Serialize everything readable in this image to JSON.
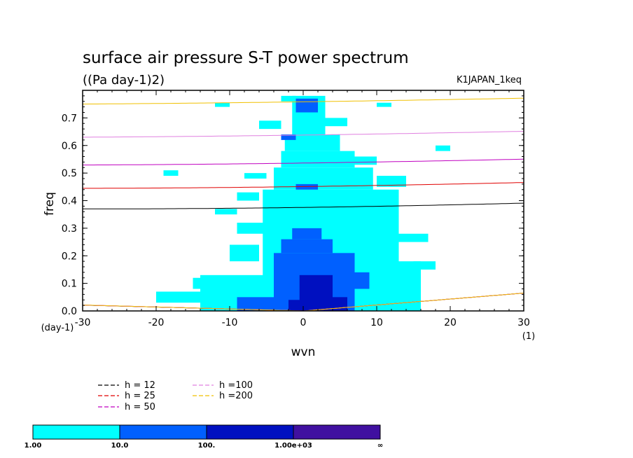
{
  "chart_data": {
    "type": "heatmap",
    "title": "surface air pressure S-T power spectrum",
    "subtitle": "((Pa day-1)2)",
    "run_label": "K1JAPAN_1keq",
    "xlabel": "wvn",
    "ylabel": "freq",
    "x_unit": "(1)",
    "y_unit": "(day-1)",
    "xlim": [
      -30,
      30
    ],
    "ylim": [
      0.0,
      0.8
    ],
    "x_ticks": [
      -30,
      -20,
      -10,
      0,
      10,
      20,
      30
    ],
    "x_tick_labels": [
      "-30",
      "-20",
      "-10",
      "0",
      "10",
      "20",
      "30"
    ],
    "y_ticks": [
      0.0,
      0.1,
      0.2,
      0.3,
      0.4,
      0.5,
      0.6,
      0.7
    ],
    "y_tick_labels": [
      "0.0",
      "0.1",
      "0.2",
      "0.3",
      "0.4",
      "0.5",
      "0.6",
      "0.7"
    ],
    "colorbar": {
      "labels": [
        "1.00",
        "10.0",
        "100.",
        "1.00e+03",
        "∞"
      ],
      "colors": [
        "#00ffff",
        "#0060ff",
        "#0010c0",
        "#4010a0"
      ]
    },
    "shading": {
      "cyan": [
        [
          -5.5,
          0.0,
          13,
          0.44
        ],
        [
          -4,
          0.44,
          9.5,
          0.52
        ],
        [
          -3,
          0.52,
          7,
          0.58
        ],
        [
          -2.5,
          0.58,
          5,
          0.64
        ],
        [
          -1.5,
          0.64,
          3,
          0.78
        ],
        [
          -14,
          0.0,
          5,
          0.13
        ],
        [
          -20,
          0.03,
          6,
          0.07
        ],
        [
          5,
          0.0,
          16,
          0.18
        ],
        [
          8,
          0.18,
          12,
          0.28
        ],
        [
          -10,
          0.18,
          -6,
          0.24
        ],
        [
          -9,
          0.28,
          -5,
          0.32
        ],
        [
          8,
          0.38,
          12,
          0.43
        ],
        [
          10,
          0.45,
          14,
          0.49
        ],
        [
          6,
          0.53,
          10,
          0.56
        ],
        [
          -9,
          0.4,
          -6,
          0.43
        ],
        [
          -15,
          0.08,
          -10,
          0.12
        ],
        [
          -12,
          0.35,
          -9,
          0.37
        ],
        [
          -8,
          0.48,
          -5,
          0.5
        ],
        [
          12,
          0.25,
          17,
          0.28
        ],
        [
          15,
          0.15,
          18,
          0.18
        ],
        [
          3,
          0.67,
          6,
          0.7
        ],
        [
          -6,
          0.66,
          -3,
          0.69
        ],
        [
          18,
          0.58,
          20,
          0.6
        ],
        [
          -19,
          0.49,
          -17,
          0.51
        ],
        [
          -12,
          0.74,
          -10,
          0.755
        ],
        [
          -3,
          0.76,
          -1,
          0.78
        ],
        [
          10,
          0.74,
          12,
          0.755
        ],
        [
          -2,
          0.1,
          3,
          0.16
        ]
      ],
      "blue": [
        [
          -4,
          0.0,
          7,
          0.21
        ],
        [
          -3,
          0.21,
          4,
          0.26
        ],
        [
          -1.5,
          0.26,
          2.5,
          0.3
        ],
        [
          -9,
          0.0,
          -4,
          0.05
        ],
        [
          5,
          0.08,
          9,
          0.14
        ],
        [
          -1,
          0.72,
          2,
          0.77
        ],
        [
          -3,
          0.62,
          -1,
          0.64
        ],
        [
          -1,
          0.44,
          2,
          0.46
        ]
      ],
      "navy": [
        [
          -0.5,
          0.0,
          4,
          0.13
        ],
        [
          2,
          0.0,
          6,
          0.05
        ],
        [
          -2,
          0.0,
          0,
          0.04
        ]
      ]
    },
    "dispersion_curves": [
      {
        "name": "h = 12",
        "color": "#000000",
        "h": 12
      },
      {
        "name": "h = 25",
        "color": "#e00000",
        "h": 25
      },
      {
        "name": "h = 50",
        "color": "#c000c0",
        "h": 50
      },
      {
        "name": "h =100",
        "color": "#e080e0",
        "h": 100
      },
      {
        "name": "h =200",
        "color": "#f0c000",
        "h": 200
      }
    ]
  }
}
